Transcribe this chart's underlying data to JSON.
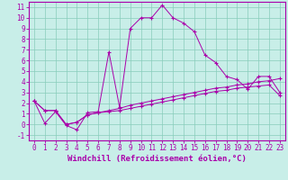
{
  "xlabel": "Windchill (Refroidissement éolien,°C)",
  "xlim": [
    -0.5,
    23.5
  ],
  "ylim": [
    -1.5,
    11.5
  ],
  "xticks": [
    0,
    1,
    2,
    3,
    4,
    5,
    6,
    7,
    8,
    9,
    10,
    11,
    12,
    13,
    14,
    15,
    16,
    17,
    18,
    19,
    20,
    21,
    22,
    23
  ],
  "yticks": [
    -1,
    0,
    1,
    2,
    3,
    4,
    5,
    6,
    7,
    8,
    9,
    10,
    11
  ],
  "background_color": "#c8eee8",
  "line_color": "#aa00aa",
  "grid_color": "#88ccbb",
  "line1_x": [
    0,
    1,
    2,
    3,
    4,
    5,
    6,
    7,
    8,
    9,
    10,
    11,
    12,
    13,
    14,
    15,
    16,
    17,
    18,
    19,
    20,
    21,
    22,
    23
  ],
  "line1_y": [
    2.2,
    0.1,
    1.2,
    -0.1,
    -0.5,
    1.1,
    1.2,
    6.8,
    1.6,
    9.0,
    10.0,
    10.0,
    11.2,
    10.0,
    9.5,
    8.7,
    6.5,
    5.8,
    4.5,
    4.2,
    3.3,
    4.5,
    4.5,
    3.0
  ],
  "line2_x": [
    0,
    1,
    2,
    3,
    4,
    5,
    6,
    7,
    8,
    9,
    10,
    11,
    12,
    13,
    14,
    15,
    16,
    17,
    18,
    19,
    20,
    21,
    22,
    23
  ],
  "line2_y": [
    2.2,
    1.3,
    1.3,
    0.0,
    0.2,
    0.9,
    1.1,
    1.3,
    1.5,
    1.8,
    2.0,
    2.2,
    2.4,
    2.6,
    2.8,
    3.0,
    3.2,
    3.4,
    3.5,
    3.7,
    3.8,
    4.0,
    4.1,
    4.3
  ],
  "line3_x": [
    0,
    1,
    2,
    3,
    4,
    5,
    6,
    7,
    8,
    9,
    10,
    11,
    12,
    13,
    14,
    15,
    16,
    17,
    18,
    19,
    20,
    21,
    22,
    23
  ],
  "line3_y": [
    2.2,
    1.3,
    1.3,
    0.0,
    0.2,
    0.9,
    1.1,
    1.2,
    1.3,
    1.5,
    1.7,
    1.9,
    2.1,
    2.3,
    2.5,
    2.7,
    2.9,
    3.1,
    3.2,
    3.4,
    3.5,
    3.6,
    3.7,
    2.7
  ],
  "tick_fontsize": 5.5,
  "label_fontsize": 6.5
}
